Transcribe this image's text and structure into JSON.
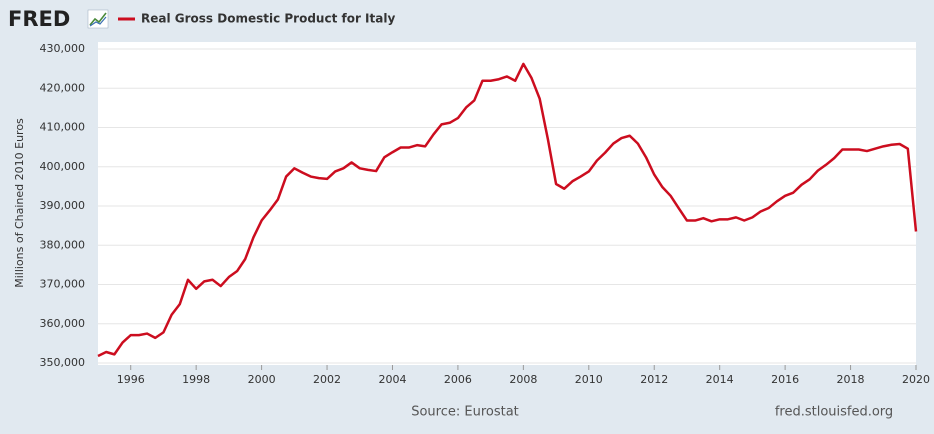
{
  "logo": "FRED",
  "chart_data": {
    "type": "line",
    "ylabel": "Millions of Chained 2010 Euros",
    "source": "Source: Eurostat",
    "site": "fred.stlouisfed.org",
    "x": [
      1995,
      1995.25,
      1995.5,
      1995.75,
      1996,
      1996.25,
      1996.5,
      1996.75,
      1997,
      1997.25,
      1997.5,
      1997.75,
      1998,
      1998.25,
      1998.5,
      1998.75,
      1999,
      1999.25,
      1999.5,
      1999.75,
      2000,
      2000.25,
      2000.5,
      2000.75,
      2001,
      2001.25,
      2001.5,
      2001.75,
      2002,
      2002.25,
      2002.5,
      2002.75,
      2003,
      2003.25,
      2003.5,
      2003.75,
      2004,
      2004.25,
      2004.5,
      2004.75,
      2005,
      2005.25,
      2005.5,
      2005.75,
      2006,
      2006.25,
      2006.5,
      2006.75,
      2007,
      2007.25,
      2007.5,
      2007.75,
      2008,
      2008.25,
      2008.5,
      2008.75,
      2009,
      2009.25,
      2009.5,
      2009.75,
      2010,
      2010.25,
      2010.5,
      2010.75,
      2011,
      2011.25,
      2011.5,
      2011.75,
      2012,
      2012.25,
      2012.5,
      2012.75,
      2013,
      2013.25,
      2013.5,
      2013.75,
      2014,
      2014.25,
      2014.5,
      2014.75,
      2015,
      2015.25,
      2015.5,
      2015.75,
      2016,
      2016.25,
      2016.5,
      2016.75,
      2017,
      2017.25,
      2017.5,
      2017.75,
      2018,
      2018.25,
      2018.5,
      2018.75,
      2019,
      2019.25,
      2019.5,
      2019.75,
      2020
    ],
    "series": [
      {
        "name": "Real Gross Domestic Product for Italy",
        "color": "#cc0d1f",
        "values": [
          351800,
          352800,
          352200,
          355200,
          357100,
          357100,
          357500,
          356400,
          357800,
          362300,
          365000,
          371200,
          368900,
          370800,
          371200,
          369600,
          371900,
          373400,
          376500,
          382000,
          386300,
          388900,
          391700,
          397500,
          399600,
          398500,
          397500,
          397100,
          396900,
          398800,
          399600,
          401100,
          399600,
          399200,
          398900,
          402400,
          403700,
          404900,
          404900,
          405500,
          405200,
          408200,
          410800,
          411200,
          412400,
          415100,
          416900,
          421900,
          421900,
          422300,
          423000,
          421900,
          426200,
          422600,
          417300,
          407000,
          395600,
          394400,
          396300,
          397500,
          398800,
          401600,
          403600,
          405900,
          407300,
          407900,
          405900,
          402400,
          398000,
          394800,
          392600,
          389400,
          386300,
          386300,
          386900,
          386100,
          386600,
          386600,
          387100,
          386300,
          387100,
          388600,
          389500,
          391200,
          392600,
          393400,
          395400,
          396800,
          399000,
          400500,
          402200,
          404400,
          404400,
          404400,
          404000,
          404600,
          405200,
          405600,
          405800,
          404600,
          383500
        ]
      }
    ],
    "xlim": [
      1995,
      2020
    ],
    "xticks": [
      1996,
      1998,
      2000,
      2002,
      2004,
      2006,
      2008,
      2010,
      2012,
      2014,
      2016,
      2018,
      2020
    ],
    "ylim": [
      350000,
      430000
    ],
    "yticks": [
      {
        "value": 350000,
        "label": "350,000"
      },
      {
        "value": 360000,
        "label": "360,000"
      },
      {
        "value": 370000,
        "label": "370,000"
      },
      {
        "value": 380000,
        "label": "380,000"
      },
      {
        "value": 390000,
        "label": "390,000"
      },
      {
        "value": 400000,
        "label": "400,000"
      },
      {
        "value": 410000,
        "label": "410,000"
      },
      {
        "value": 420000,
        "label": "420,000"
      },
      {
        "value": 430000,
        "label": "430,000"
      }
    ],
    "grid": true
  }
}
